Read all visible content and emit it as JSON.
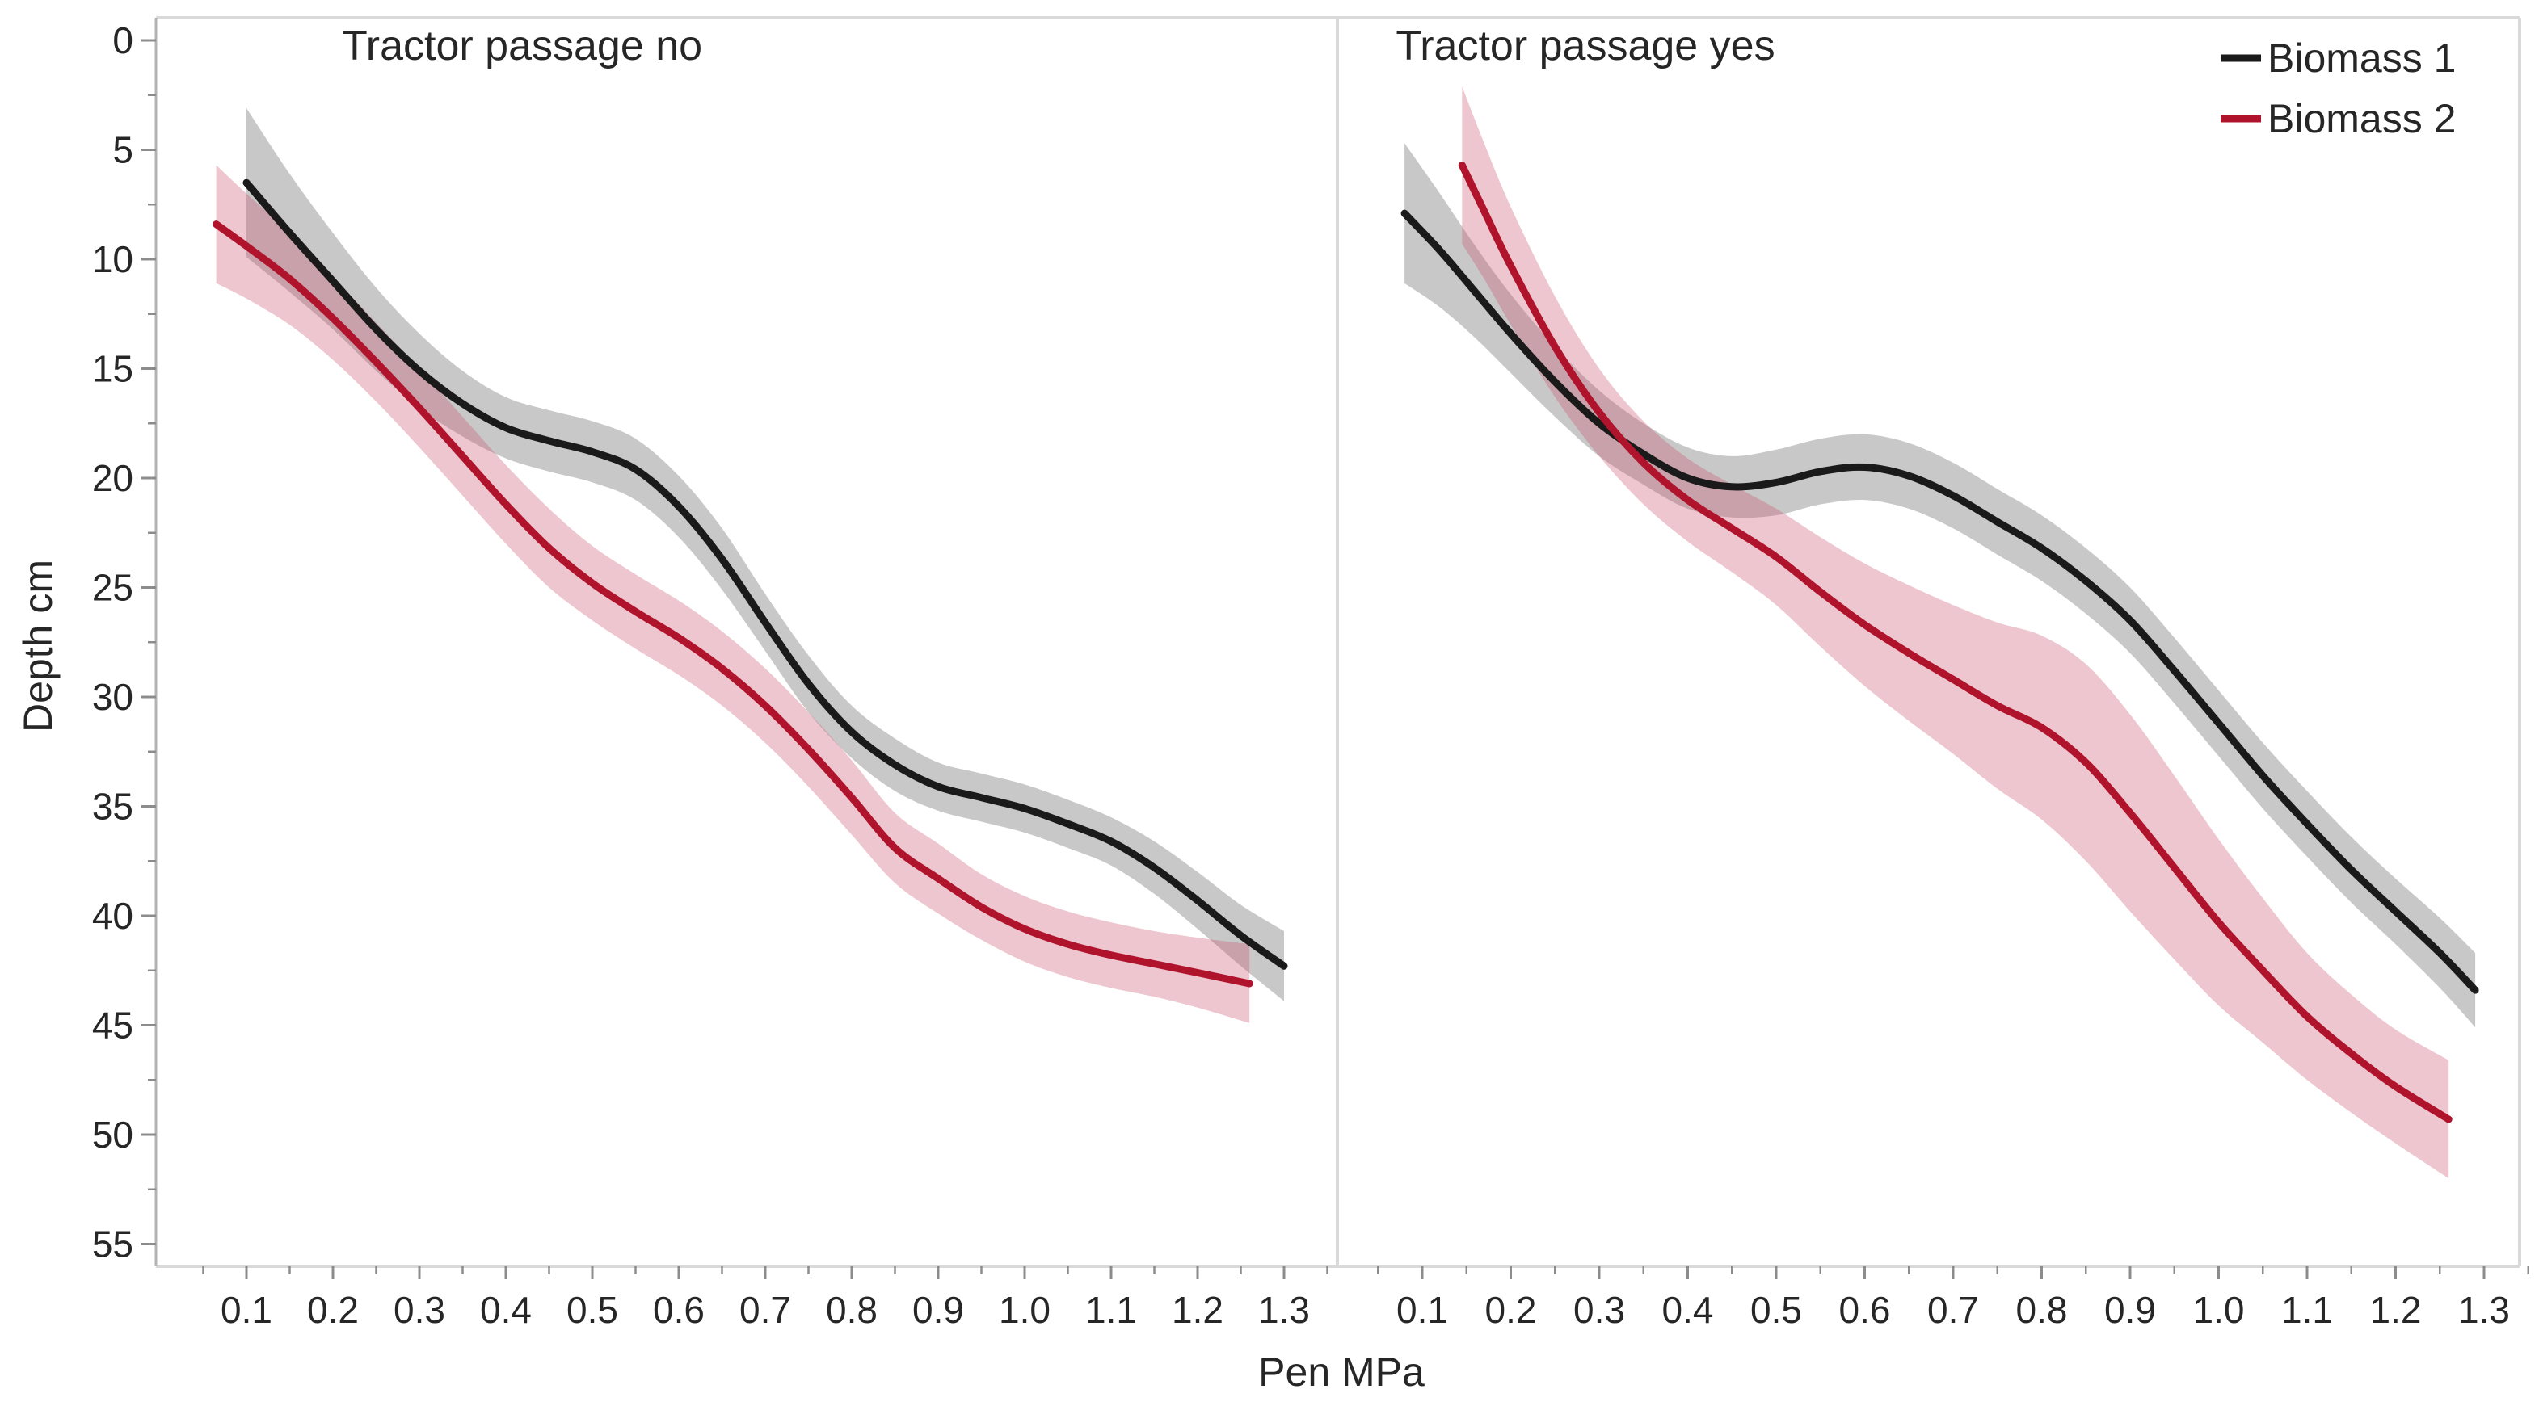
{
  "figure": {
    "y_axis": {
      "label": "Depth cm",
      "tick_labels": [
        "0",
        "5",
        "10",
        "15",
        "20",
        "25",
        "30",
        "35",
        "40",
        "45",
        "50",
        "55"
      ],
      "minor_step": 2.5,
      "unit": "cm",
      "direction": "increasing downward"
    },
    "x_axis": {
      "label": "Pen MPa",
      "tick_labels": [
        "0.1",
        "0.2",
        "0.3",
        "0.4",
        "0.5",
        "0.6",
        "0.7",
        "0.8",
        "0.9",
        "1.0",
        "1.1",
        "1.2",
        "1.3"
      ],
      "minor_step": 0.05,
      "unit": "MPa"
    },
    "legend": {
      "position": "top-right",
      "entries": [
        {
          "label": "Biomass 1",
          "color": "#1a1a1a"
        },
        {
          "label": "Biomass 2",
          "color": "#b0142c"
        }
      ]
    },
    "colors": {
      "biomass1_line": "#1a1a1a",
      "biomass2_line": "#b0142c",
      "biomass1_band": "rgba(96,96,96,0.35)",
      "biomass2_band": "rgba(202,82,108,0.33)",
      "frame": "#d9d9d9",
      "axis_line": "#b3b3b3",
      "tick_mark": "#8c8c8c",
      "text": "#262626"
    }
  },
  "chart_data": {
    "type": "line",
    "title": "",
    "xlabel": "Pen MPa",
    "ylabel": "Depth cm",
    "xlim": [
      0.05,
      1.35
    ],
    "ylim_depth": [
      0,
      57
    ],
    "grid": false,
    "legend_position": "top-right",
    "note": "Smoothed spline fits with confidence bands; y axis inverted (depth). ci = half-width of band in cm.",
    "facets": [
      {
        "title": "Tractor passage no",
        "series": [
          {
            "name": "Biomass 1",
            "x": [
              0.1,
              0.15,
              0.2,
              0.25,
              0.3,
              0.35,
              0.4,
              0.45,
              0.5,
              0.55,
              0.6,
              0.65,
              0.7,
              0.75,
              0.8,
              0.85,
              0.9,
              0.95,
              1.0,
              1.05,
              1.1,
              1.15,
              1.2,
              1.25,
              1.3
            ],
            "depth": [
              6.5,
              8.8,
              11.0,
              13.2,
              15.1,
              16.6,
              17.7,
              18.3,
              18.8,
              19.6,
              21.3,
              23.7,
              26.6,
              29.4,
              31.6,
              33.1,
              34.1,
              34.6,
              35.1,
              35.8,
              36.6,
              37.8,
              39.3,
              40.9,
              42.3
            ],
            "ci": [
              3.4,
              2.7,
              2.2,
              1.9,
              1.7,
              1.5,
              1.4,
              1.4,
              1.4,
              1.4,
              1.4,
              1.4,
              1.3,
              1.3,
              1.2,
              1.2,
              1.1,
              1.1,
              1.1,
              1.1,
              1.1,
              1.2,
              1.3,
              1.4,
              1.6
            ]
          },
          {
            "name": "Biomass 2",
            "x": [
              0.065,
              0.1,
              0.15,
              0.2,
              0.25,
              0.3,
              0.35,
              0.4,
              0.45,
              0.5,
              0.55,
              0.6,
              0.65,
              0.7,
              0.75,
              0.8,
              0.85,
              0.9,
              0.95,
              1.0,
              1.05,
              1.1,
              1.15,
              1.2,
              1.26
            ],
            "depth": [
              8.4,
              9.4,
              10.9,
              12.7,
              14.7,
              16.8,
              19.0,
              21.2,
              23.2,
              24.8,
              26.1,
              27.3,
              28.7,
              30.4,
              32.4,
              34.6,
              36.9,
              38.3,
              39.6,
              40.6,
              41.3,
              41.8,
              42.2,
              42.6,
              43.1
            ],
            "ci": [
              2.7,
              2.4,
              2.1,
              1.9,
              1.8,
              1.8,
              1.8,
              1.8,
              1.8,
              1.7,
              1.7,
              1.7,
              1.7,
              1.7,
              1.7,
              1.7,
              1.6,
              1.6,
              1.5,
              1.5,
              1.5,
              1.5,
              1.5,
              1.6,
              1.8
            ]
          }
        ]
      },
      {
        "title": "Tractor passage yes",
        "series": [
          {
            "name": "Biomass 1",
            "x": [
              0.08,
              0.12,
              0.16,
              0.2,
              0.25,
              0.3,
              0.35,
              0.4,
              0.45,
              0.5,
              0.55,
              0.6,
              0.65,
              0.7,
              0.75,
              0.8,
              0.85,
              0.9,
              0.95,
              1.0,
              1.05,
              1.1,
              1.15,
              1.2,
              1.25,
              1.29
            ],
            "depth": [
              7.9,
              9.6,
              11.5,
              13.4,
              15.6,
              17.5,
              18.9,
              20.0,
              20.4,
              20.2,
              19.7,
              19.5,
              19.9,
              20.8,
              22.0,
              23.2,
              24.7,
              26.5,
              28.8,
              31.2,
              33.6,
              35.8,
              37.9,
              39.8,
              41.7,
              43.4
            ],
            "ci": [
              3.2,
              2.6,
              2.1,
              1.8,
              1.6,
              1.5,
              1.4,
              1.4,
              1.4,
              1.5,
              1.5,
              1.5,
              1.5,
              1.5,
              1.5,
              1.5,
              1.5,
              1.5,
              1.5,
              1.5,
              1.5,
              1.5,
              1.5,
              1.5,
              1.6,
              1.7
            ]
          },
          {
            "name": "Biomass 2",
            "x": [
              0.145,
              0.17,
              0.2,
              0.25,
              0.3,
              0.35,
              0.4,
              0.45,
              0.5,
              0.55,
              0.6,
              0.65,
              0.7,
              0.75,
              0.8,
              0.85,
              0.9,
              0.95,
              1.0,
              1.05,
              1.1,
              1.15,
              1.2,
              1.26
            ],
            "depth": [
              5.7,
              7.8,
              10.3,
              14.0,
              17.0,
              19.3,
              21.0,
              22.3,
              23.6,
              25.2,
              26.7,
              28.0,
              29.2,
              30.4,
              31.4,
              33.0,
              35.3,
              37.8,
              40.3,
              42.5,
              44.6,
              46.3,
              47.8,
              49.3
            ],
            "ci": [
              3.6,
              3.1,
              2.7,
              2.3,
              2.0,
              1.9,
              1.9,
              2.0,
              2.2,
              2.5,
              2.8,
              3.1,
              3.4,
              3.8,
              4.2,
              4.5,
              4.5,
              4.2,
              3.8,
              3.3,
              2.9,
              2.7,
              2.6,
              2.7
            ]
          }
        ]
      }
    ]
  }
}
